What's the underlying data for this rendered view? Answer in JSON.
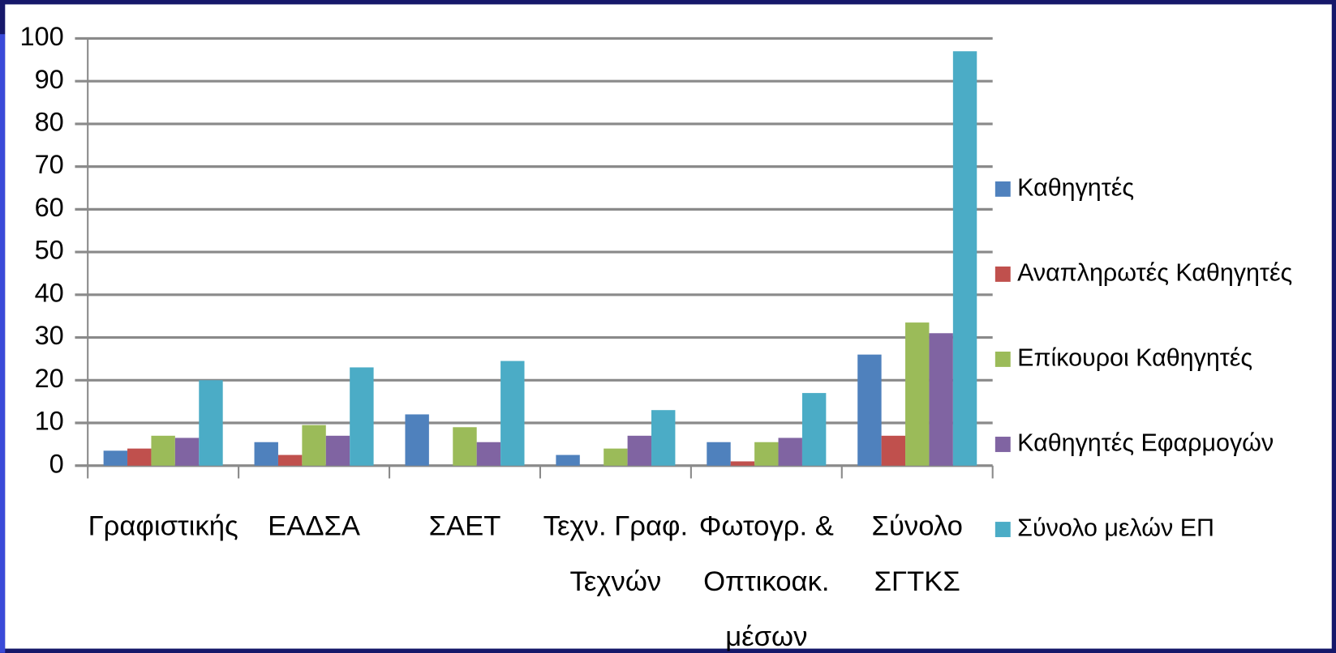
{
  "chart_data": {
    "type": "bar",
    "categories": [
      [
        "Γραφιστικής"
      ],
      [
        "ΕΑΔΣΑ"
      ],
      [
        "ΣΑΕΤ"
      ],
      [
        "Τεχν. Γραφ.",
        "Τεχνών"
      ],
      [
        "Φωτογρ. &",
        "Οπτικοακ.",
        "μέσων"
      ],
      [
        "Σύνολο",
        "ΣΓΤΚΣ"
      ]
    ],
    "series": [
      {
        "name": "Καθηγητές",
        "color": "#4f81bd",
        "values": [
          3.5,
          5.5,
          12,
          2.5,
          5.5,
          26
        ]
      },
      {
        "name": "Αναπληρωτές Καθηγητές",
        "color": "#c0504d",
        "values": [
          4,
          2.5,
          0,
          0,
          1,
          7
        ]
      },
      {
        "name": "Επίκουροι Καθηγητές",
        "color": "#9bbb59",
        "values": [
          7,
          9.5,
          9,
          4,
          5.5,
          33.5
        ]
      },
      {
        "name": "Καθηγητές Εφαρμογών",
        "color": "#8064a2",
        "values": [
          6.5,
          7,
          5.5,
          7,
          6.5,
          31
        ]
      },
      {
        "name": "Σύνολο μελών ΕΠ",
        "color": "#4bacc6",
        "values": [
          20,
          23,
          24.5,
          13,
          17,
          97
        ]
      }
    ],
    "ylim": [
      0,
      100
    ],
    "yticks": [
      0,
      10,
      20,
      30,
      40,
      50,
      60,
      70,
      80,
      90,
      100
    ],
    "grid": true,
    "legend": "right"
  }
}
